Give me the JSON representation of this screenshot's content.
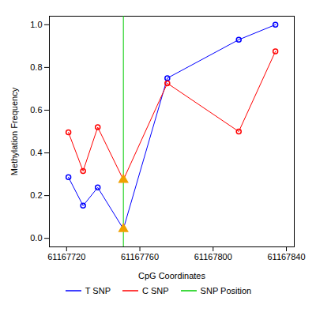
{
  "chart_data": {
    "type": "line",
    "x_label": "CpG Coordinates",
    "y_label": "Methylation Frequency",
    "xlim": [
      61167710.6,
      61167844.3
    ],
    "xticks": [
      61167720,
      61167760,
      61167800,
      61167840
    ],
    "ylim": [
      -0.04,
      1.04
    ],
    "yticks": [
      {
        "value": 0,
        "label": "0.0"
      },
      0.2,
      0.4,
      0.6,
      0.8,
      {
        "value": 1,
        "label": "1.0"
      }
    ],
    "x": [
      61167721,
      61167729,
      61167737,
      61167751,
      61167775,
      61167814,
      61167834
    ],
    "series": [
      {
        "name": "T SNP",
        "color": "#0000ff",
        "marker": "circle",
        "line_style": "solid",
        "values": [
          0.286,
          0.153,
          0.238,
          0.044,
          0.75,
          0.93,
          1.0
        ]
      },
      {
        "name": "C SNP",
        "color": "#ff0000",
        "marker": "circle",
        "line_style": "solid",
        "values": [
          0.496,
          0.315,
          0.52,
          0.274,
          0.726,
          0.5,
          0.875
        ]
      }
    ],
    "snp_position": {
      "name": "SNP Position",
      "x": 61167751,
      "color": "#00cc00"
    },
    "legend": "bottom",
    "grid": false
  }
}
